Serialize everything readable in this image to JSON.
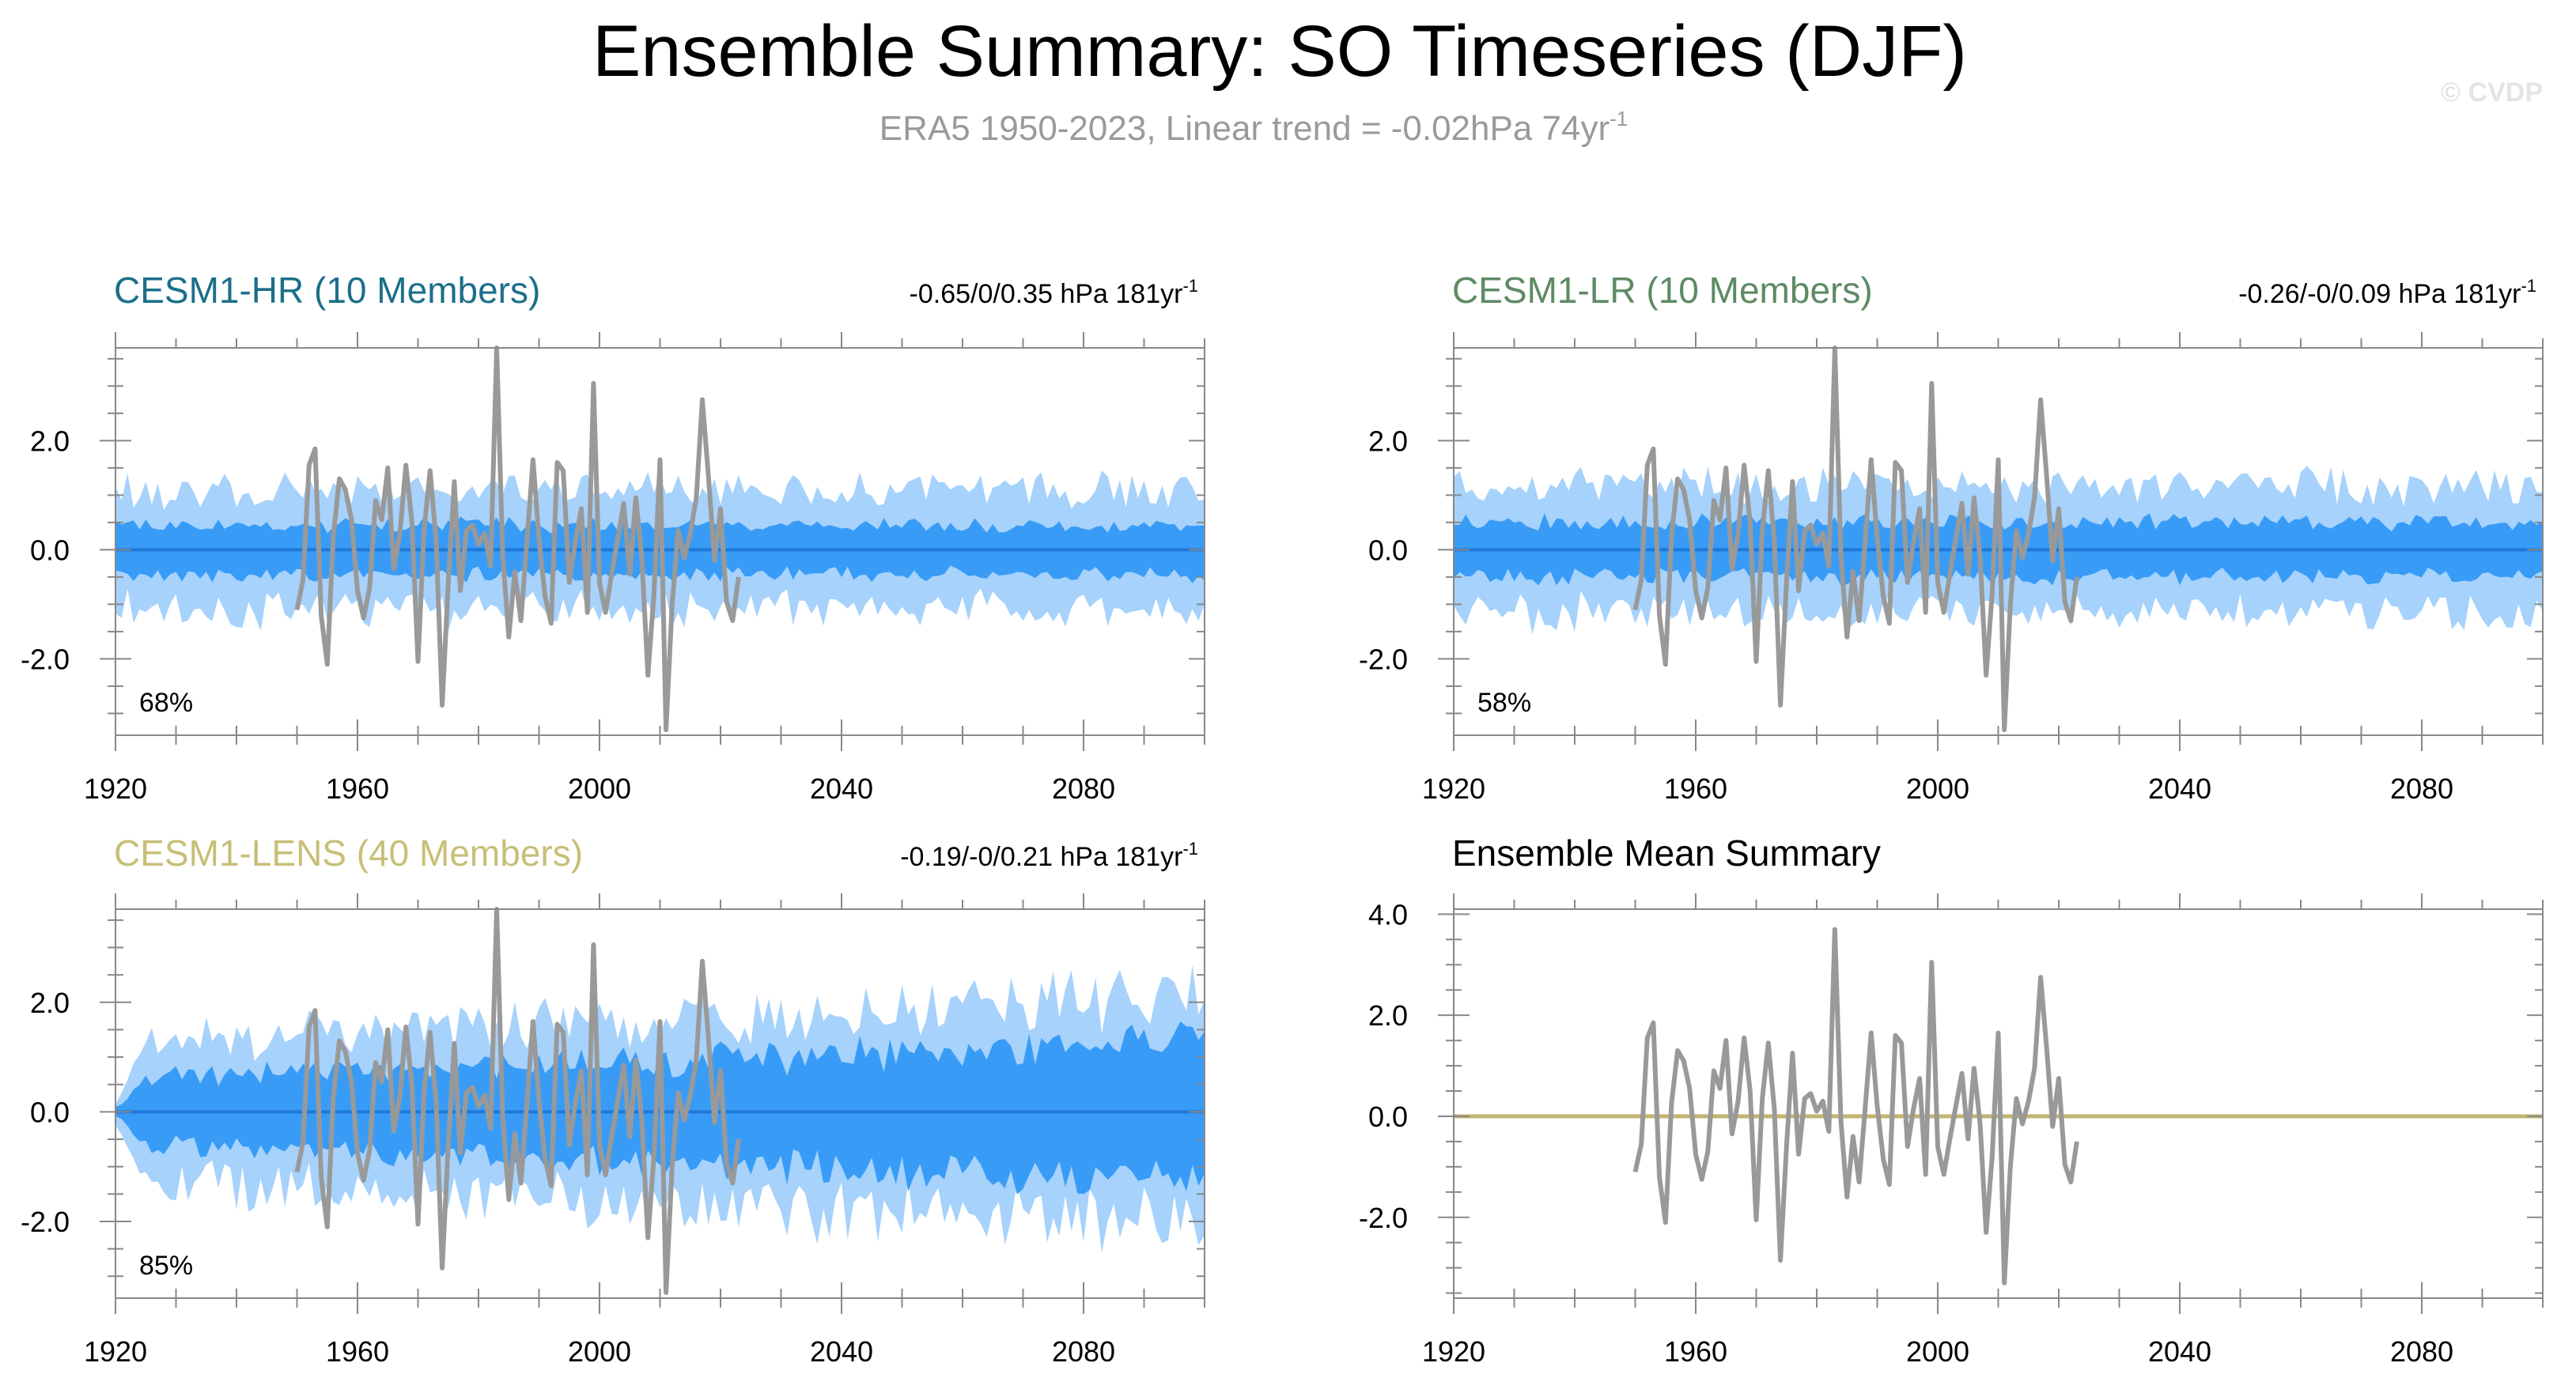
{
  "figure": {
    "title": "Ensemble Summary: SO Timeseries (DJF)",
    "subtitle": "ERA5 1950-2023, Linear trend = -0.02hPa 74yr",
    "subtitle_sup": "-1",
    "watermark": "© CVDP"
  },
  "colors": {
    "outer_band": "#a6d2fb",
    "inner_band": "#389cf7",
    "ensemble_median_line": "#1f78d8",
    "obs_line": "#999999",
    "ensemble_mean_line": "#c2b570",
    "title_hr": "#1b6f8a",
    "title_lr": "#5e8a63",
    "title_lens": "#c7bf77",
    "title_mean": "#000000"
  },
  "panels": [
    {
      "name": "hr",
      "title": "CESM1-HR (10 Members)",
      "title_color": "#1b6f8a",
      "stat": "-0.65/0/0.35 hPa 181yr",
      "stat_sup": "-1",
      "percent": "68%",
      "y_ticks": [
        "2.0",
        "0.0",
        "-2.0"
      ],
      "x_ticks": [
        "1920",
        "1960",
        "2000",
        "2040",
        "2080"
      ]
    },
    {
      "name": "lr",
      "title": "CESM1-LR (10 Members)",
      "title_color": "#5e8a63",
      "stat": "-0.26/-0/0.09 hPa 181yr",
      "stat_sup": "-1",
      "percent": "58%",
      "y_ticks": [
        "2.0",
        "0.0",
        "-2.0"
      ],
      "x_ticks": [
        "1920",
        "1960",
        "2000",
        "2040",
        "2080"
      ]
    },
    {
      "name": "lens",
      "title": "CESM1-LENS (40 Members)",
      "title_color": "#c7bf77",
      "stat": "-0.19/-0/0.21 hPa 181yr",
      "stat_sup": "-1",
      "percent": "85%",
      "y_ticks": [
        "2.0",
        "0.0",
        "-2.0"
      ],
      "x_ticks": [
        "1920",
        "1960",
        "2000",
        "2040",
        "2080"
      ]
    },
    {
      "name": "mean",
      "title": "Ensemble Mean Summary",
      "title_color": "#000000",
      "y_ticks": [
        "4.0",
        "2.0",
        "0.0",
        "-2.0"
      ],
      "x_ticks": [
        "1920",
        "1960",
        "2000",
        "2040",
        "2080"
      ]
    }
  ],
  "chart_data": {
    "type": "area",
    "x_range": [
      1920,
      2100
    ],
    "x_ticks": [
      1920,
      1960,
      2000,
      2040,
      2080
    ],
    "y_units": "hPa",
    "observations": {
      "x_start": 1950,
      "values": [
        -1.1,
        -0.55,
        1.55,
        1.85,
        -1.2,
        -2.1,
        0.25,
        1.3,
        1.1,
        0.55,
        -0.75,
        -1.25,
        -0.7,
        0.9,
        0.55,
        1.5,
        -0.35,
        0.3,
        1.55,
        0.5,
        -2.05,
        0.35,
        1.45,
        0.15,
        -2.85,
        -0.6,
        1.25,
        -0.75,
        0.35,
        0.45,
        0.1,
        0.3,
        -0.3,
        3.7,
        -0.1,
        -1.6,
        -0.4,
        -1.3,
        0.15,
        1.65,
        0.2,
        -0.85,
        -1.35,
        1.6,
        1.45,
        -0.6,
        0.15,
        0.75,
        -1.15,
        3.05,
        -0.6,
        -1.15,
        -0.45,
        0.2,
        0.85,
        -0.45,
        0.95,
        -0.15,
        -2.3,
        -0.8,
        1.65,
        -3.3,
        -1.0,
        0.35,
        -0.15,
        0.3,
        0.95,
        2.75,
        1.35,
        -0.2,
        0.75,
        -0.95,
        -1.3,
        -0.5
      ]
    },
    "panels": [
      {
        "panel": "CESM1-HR (10 Members)",
        "series": [
          {
            "name": "10-90% spread",
            "type": "band",
            "half_width": 1.1
          },
          {
            "name": "25-75% spread",
            "type": "band",
            "half_width": 0.45
          },
          {
            "name": "ensemble median",
            "type": "line",
            "value": 0.0
          }
        ],
        "ylim": [
          -3.4,
          3.7
        ]
      },
      {
        "panel": "CESM1-LR (10 Members)",
        "series": [
          {
            "name": "10-90% spread",
            "type": "band",
            "half_width": 1.15
          },
          {
            "name": "25-75% spread",
            "type": "band",
            "half_width": 0.5
          },
          {
            "name": "ensemble median",
            "type": "line",
            "value": 0.0
          }
        ],
        "ylim": [
          -3.4,
          3.7
        ]
      },
      {
        "panel": "CESM1-LENS (40 Members)",
        "series": [
          {
            "name": "10-90% spread",
            "type": "band",
            "half_width_start": 1.25,
            "half_width_end": 2.1
          },
          {
            "name": "25-75% spread",
            "type": "band",
            "half_width_start": 0.6,
            "half_width_end": 1.3
          },
          {
            "name": "ensemble median",
            "type": "line",
            "value": 0.0
          }
        ],
        "ylim": [
          -3.4,
          3.7
        ]
      },
      {
        "panel": "Ensemble Mean Summary",
        "series": [
          {
            "name": "ensemble mean",
            "type": "line",
            "value": 0.0
          }
        ],
        "ylim": [
          -3.6,
          4.1
        ]
      }
    ]
  }
}
